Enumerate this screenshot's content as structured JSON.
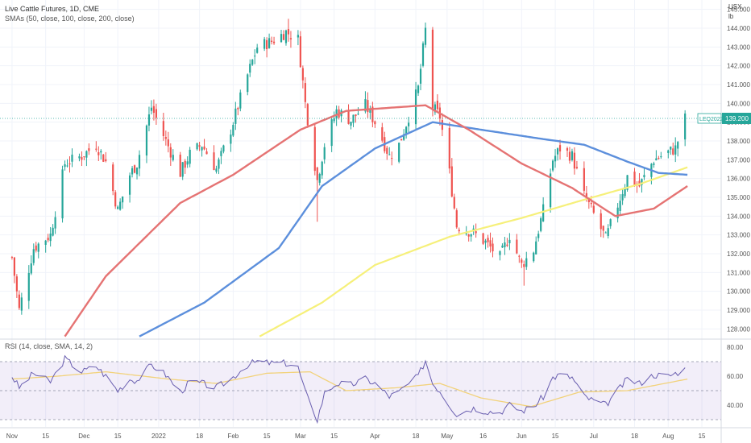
{
  "header": {
    "title": "Live Cattle Futures, 1D, CME",
    "sma_legend": "SMAs (50, close, 100, close, 200, close)",
    "rsi_legend": "RSI (14, close, SMA, 14, 2)"
  },
  "price_scale": {
    "currency": "USX",
    "unit": "lb"
  },
  "last_price": {
    "symbol": "LEQ2022",
    "value": "139.200",
    "raw": 139.2
  },
  "colors": {
    "up": "#26a69a",
    "down": "#ef5350",
    "sma50": "#e57373",
    "sma100": "#5c8fdc",
    "sma200": "#f6f07a",
    "rsi": "#6a5fb0",
    "rsi_ma": "#f2d27a",
    "rsi_band": "#7e57c2"
  },
  "chart_data": [
    {
      "type": "candlestick",
      "title": "Live Cattle Futures, 1D, CME",
      "ylim": [
        127.5,
        145.5
      ],
      "y_ticks": [
        "128.000",
        "129.000",
        "130.000",
        "131.000",
        "132.000",
        "133.000",
        "134.000",
        "135.000",
        "136.000",
        "137.000",
        "138.000",
        "139.000",
        "140.000",
        "141.000",
        "142.000",
        "143.000",
        "144.000",
        "145.000"
      ],
      "x_labels": [
        "Nov",
        "15",
        "Dec",
        "15",
        "2022",
        "18",
        "Feb",
        "15",
        "Mar",
        "15",
        "Apr",
        "18",
        "May",
        "16",
        "Jun",
        "15",
        "Jul",
        "18",
        "Aug",
        "15"
      ],
      "anchors": [
        [
          "2021-11-01",
          131.8
        ],
        [
          "2021-11-04",
          129.0
        ],
        [
          "2021-11-10",
          132.3
        ],
        [
          "2021-11-17",
          133.0
        ],
        [
          "2021-11-23",
          136.8
        ],
        [
          "2021-11-30",
          137.2
        ],
        [
          "2021-12-06",
          137.8
        ],
        [
          "2021-12-10",
          136.9
        ],
        [
          "2021-12-15",
          134.3
        ],
        [
          "2021-12-20",
          136.2
        ],
        [
          "2021-12-23",
          136.8
        ],
        [
          "2021-12-29",
          139.8
        ],
        [
          "2022-01-04",
          138.0
        ],
        [
          "2022-01-10",
          136.3
        ],
        [
          "2022-01-14",
          137.3
        ],
        [
          "2022-01-19",
          137.8
        ],
        [
          "2022-01-25",
          136.5
        ],
        [
          "2022-01-31",
          138.6
        ],
        [
          "2022-02-07",
          141.5
        ],
        [
          "2022-02-11",
          143.0
        ],
        [
          "2022-02-17",
          143.3
        ],
        [
          "2022-02-23",
          143.8
        ],
        [
          "2022-02-28",
          143.4
        ],
        [
          "2022-03-03",
          140.0
        ],
        [
          "2022-03-08",
          135.9
        ],
        [
          "2022-03-11",
          137.8
        ],
        [
          "2022-03-16",
          139.6
        ],
        [
          "2022-03-22",
          139.1
        ],
        [
          "2022-03-28",
          139.9
        ],
        [
          "2022-04-01",
          139.0
        ],
        [
          "2022-04-07",
          137.2
        ],
        [
          "2022-04-11",
          137.8
        ],
        [
          "2022-04-19",
          140.8
        ],
        [
          "2022-04-22",
          143.9
        ],
        [
          "2022-04-25",
          139.8
        ],
        [
          "2022-04-28",
          139.3
        ],
        [
          "2022-05-02",
          136.3
        ],
        [
          "2022-05-05",
          133.5
        ],
        [
          "2022-05-12",
          133.1
        ],
        [
          "2022-05-17",
          132.6
        ],
        [
          "2022-05-23",
          131.8
        ],
        [
          "2022-05-27",
          133.0
        ],
        [
          "2022-06-01",
          131.4
        ],
        [
          "2022-06-06",
          132.2
        ],
        [
          "2022-06-10",
          134.3
        ],
        [
          "2022-06-14",
          137.0
        ],
        [
          "2022-06-17",
          137.6
        ],
        [
          "2022-06-22",
          137.2
        ],
        [
          "2022-06-27",
          135.1
        ],
        [
          "2022-07-01",
          134.1
        ],
        [
          "2022-07-06",
          132.8
        ],
        [
          "2022-07-11",
          134.6
        ],
        [
          "2022-07-15",
          136.1
        ],
        [
          "2022-07-20",
          135.6
        ],
        [
          "2022-07-26",
          137.0
        ],
        [
          "2022-08-01",
          137.4
        ],
        [
          "2022-08-04",
          137.6
        ],
        [
          "2022-08-08",
          139.2
        ]
      ],
      "sma50_points": [
        [
          "2021-11-23",
          127.6
        ],
        [
          "2021-12-10",
          130.8
        ],
        [
          "2022-01-10",
          134.7
        ],
        [
          "2022-02-01",
          136.2
        ],
        [
          "2022-03-01",
          138.6
        ],
        [
          "2022-03-20",
          139.6
        ],
        [
          "2022-04-22",
          139.9
        ],
        [
          "2022-05-10",
          138.6
        ],
        [
          "2022-06-01",
          136.8
        ],
        [
          "2022-06-22",
          135.5
        ],
        [
          "2022-07-10",
          134.0
        ],
        [
          "2022-07-26",
          134.4
        ],
        [
          "2022-08-09",
          135.6
        ]
      ],
      "sma100_points": [
        [
          "2021-12-24",
          127.6
        ],
        [
          "2022-01-20",
          129.4
        ],
        [
          "2022-02-20",
          132.3
        ],
        [
          "2022-03-10",
          135.6
        ],
        [
          "2022-04-01",
          137.6
        ],
        [
          "2022-04-25",
          139.0
        ],
        [
          "2022-05-15",
          138.6
        ],
        [
          "2022-06-10",
          138.1
        ],
        [
          "2022-06-27",
          137.8
        ],
        [
          "2022-07-15",
          136.9
        ],
        [
          "2022-07-28",
          136.3
        ],
        [
          "2022-08-09",
          136.2
        ]
      ],
      "sma200_points": [
        [
          "2022-02-12",
          127.6
        ],
        [
          "2022-03-10",
          129.4
        ],
        [
          "2022-04-01",
          131.4
        ],
        [
          "2022-05-02",
          132.9
        ],
        [
          "2022-06-01",
          133.9
        ],
        [
          "2022-06-25",
          134.8
        ],
        [
          "2022-07-20",
          135.7
        ],
        [
          "2022-08-09",
          136.6
        ]
      ]
    },
    {
      "type": "line",
      "title": "RSI (14, close, SMA, 14, 2)",
      "ylim": [
        25,
        85
      ],
      "y_ticks": [
        "40.00",
        "60.00",
        "80.00"
      ],
      "bands": {
        "upper": 70,
        "mid": 50,
        "lower": 30
      },
      "rsi_points": [
        [
          "2021-11-01",
          60
        ],
        [
          "2021-11-04",
          52
        ],
        [
          "2021-11-10",
          62
        ],
        [
          "2021-11-17",
          56
        ],
        [
          "2021-11-23",
          72
        ],
        [
          "2021-11-30",
          63
        ],
        [
          "2021-12-06",
          67
        ],
        [
          "2021-12-10",
          60
        ],
        [
          "2021-12-15",
          50
        ],
        [
          "2021-12-20",
          58
        ],
        [
          "2021-12-23",
          57
        ],
        [
          "2021-12-29",
          68
        ],
        [
          "2022-01-04",
          61
        ],
        [
          "2022-01-10",
          49
        ],
        [
          "2022-01-14",
          56
        ],
        [
          "2022-01-19",
          55
        ],
        [
          "2022-01-25",
          52
        ],
        [
          "2022-01-31",
          58
        ],
        [
          "2022-02-07",
          68
        ],
        [
          "2022-02-11",
          70
        ],
        [
          "2022-02-17",
          69
        ],
        [
          "2022-02-23",
          69
        ],
        [
          "2022-02-28",
          66
        ],
        [
          "2022-03-03",
          49
        ],
        [
          "2022-03-08",
          30
        ],
        [
          "2022-03-11",
          48
        ],
        [
          "2022-03-16",
          55
        ],
        [
          "2022-03-22",
          54
        ],
        [
          "2022-03-28",
          58
        ],
        [
          "2022-04-01",
          55
        ],
        [
          "2022-04-07",
          46
        ],
        [
          "2022-04-11",
          49
        ],
        [
          "2022-04-19",
          60
        ],
        [
          "2022-04-22",
          71
        ],
        [
          "2022-04-25",
          55
        ],
        [
          "2022-04-28",
          50
        ],
        [
          "2022-05-02",
          40
        ],
        [
          "2022-05-05",
          34
        ],
        [
          "2022-05-12",
          38
        ],
        [
          "2022-05-17",
          36
        ],
        [
          "2022-05-23",
          35
        ],
        [
          "2022-05-27",
          40
        ],
        [
          "2022-06-01",
          36
        ],
        [
          "2022-06-06",
          39
        ],
        [
          "2022-06-10",
          46
        ],
        [
          "2022-06-14",
          59
        ],
        [
          "2022-06-17",
          61
        ],
        [
          "2022-06-22",
          59
        ],
        [
          "2022-06-27",
          46
        ],
        [
          "2022-07-01",
          43
        ],
        [
          "2022-07-06",
          40
        ],
        [
          "2022-07-11",
          50
        ],
        [
          "2022-07-15",
          58
        ],
        [
          "2022-07-20",
          55
        ],
        [
          "2022-07-26",
          61
        ],
        [
          "2022-08-01",
          60
        ],
        [
          "2022-08-04",
          62
        ],
        [
          "2022-08-08",
          65
        ]
      ],
      "rsi_ma_points": [
        [
          "2021-11-01",
          58
        ],
        [
          "2021-11-20",
          60
        ],
        [
          "2021-12-10",
          63
        ],
        [
          "2022-01-05",
          58
        ],
        [
          "2022-01-25",
          55
        ],
        [
          "2022-02-15",
          62
        ],
        [
          "2022-03-05",
          63
        ],
        [
          "2022-03-20",
          50
        ],
        [
          "2022-04-10",
          52
        ],
        [
          "2022-04-28",
          55
        ],
        [
          "2022-05-15",
          45
        ],
        [
          "2022-06-05",
          39
        ],
        [
          "2022-06-25",
          49
        ],
        [
          "2022-07-15",
          50
        ],
        [
          "2022-08-09",
          58
        ]
      ]
    }
  ]
}
